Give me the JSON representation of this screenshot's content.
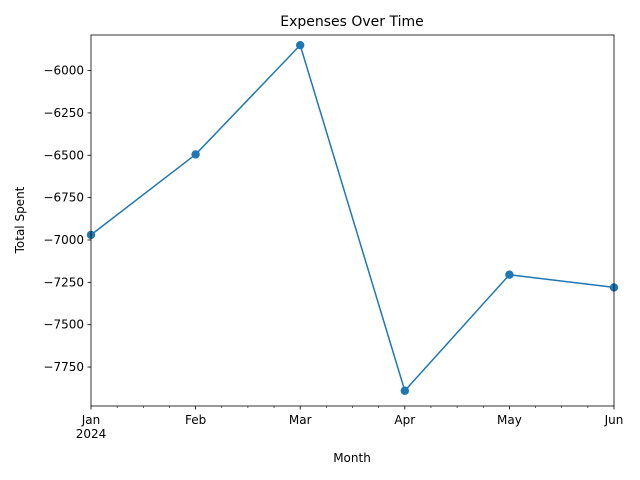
{
  "chart_data": {
    "type": "line",
    "title": "Expenses Over Time",
    "xlabel": "Month",
    "ylabel": "Total Spent",
    "x": [
      "2024-01",
      "2024-02",
      "2024-03",
      "2024-04",
      "2024-05",
      "2024-06"
    ],
    "x_tick_labels": [
      "Jan",
      "Feb",
      "Mar",
      "Apr",
      "May",
      "Jun"
    ],
    "x_year_label": "2024",
    "y_ticks": [
      -6000,
      -6250,
      -6500,
      -6750,
      -7000,
      -7250,
      -7500,
      -7750
    ],
    "y_tick_labels": [
      "−6000",
      "−6250",
      "−6500",
      "−6750",
      "−7000",
      "−7250",
      "−7500",
      "−7750"
    ],
    "ylim": [
      -7980,
      -5790
    ],
    "series": [
      {
        "values": [
          -6970,
          -6495,
          -5850,
          -7890,
          -7205,
          -7280
        ],
        "color": "#1f77b4",
        "marker": "circle"
      }
    ],
    "grid": false,
    "legend": "none"
  }
}
